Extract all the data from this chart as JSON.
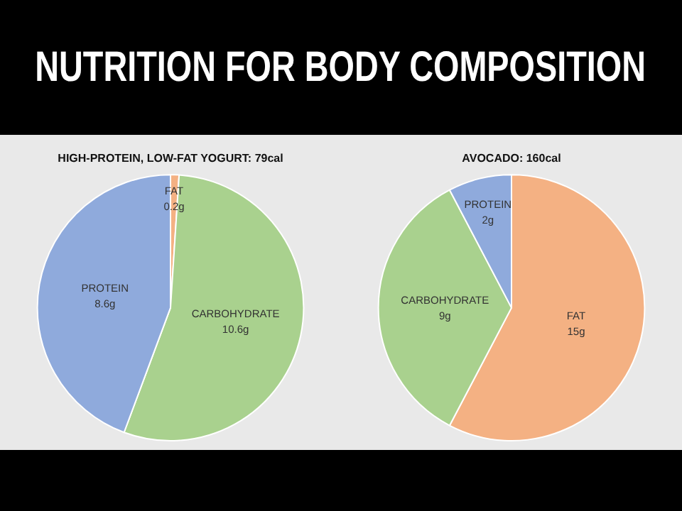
{
  "chart_data": [
    {
      "type": "other",
      "title": "NUTRITION FOR BODY COMPOSITION"
    },
    {
      "type": "pie",
      "title": "HIGH-PROTEIN, LOW-FAT YOGURT: 79cal",
      "categories": [
        "FAT",
        "CARBOHYDRATE",
        "PROTEIN"
      ],
      "values": [
        0.2,
        10.6,
        8.6
      ],
      "value_labels": [
        "0.2g",
        "10.6g",
        "8.6g"
      ],
      "colors": [
        "#f4b183",
        "#a9d18e",
        "#8faadc"
      ],
      "legend": false
    },
    {
      "type": "pie",
      "title": "AVOCADO: 160cal",
      "categories": [
        "FAT",
        "CARBOHYDRATE",
        "PROTEIN"
      ],
      "values": [
        15,
        9,
        2
      ],
      "value_labels": [
        "15g",
        "9g",
        "2g"
      ],
      "colors": [
        "#f4b183",
        "#a9d18e",
        "#8faadc"
      ],
      "legend": false
    }
  ]
}
